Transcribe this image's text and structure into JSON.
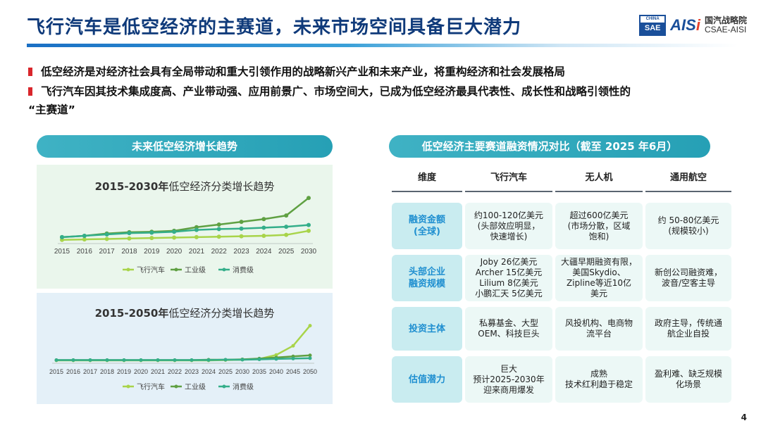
{
  "title": "飞行汽车是低空经济的主赛道，未来市场空间具备巨大潜力",
  "logo": {
    "box_top": "CHINA",
    "box_bottom": "SAE",
    "aisi_main": "AIS",
    "aisi_accent": "i",
    "name_cn": "国汽战略院",
    "name_en": "CSAE-AISI"
  },
  "bullets": [
    "低空经济是对经济社会具有全局带动和重大引领作用的战略新兴产业和未来产业，将重构经济和社会发展格局",
    "飞行汽车因其技术集成度高、产业带动强、应用前景广、市场空间大，已成为低空经济最具代表性、成长性和战略引领性的",
    "“主赛道”"
  ],
  "left_pill": "未来低空经济增长趋势",
  "right_pill": "低空经济主要赛道融资情况对比（截至 2025 年6月）",
  "chart_data": [
    {
      "type": "line",
      "title": "2015-2030年低空经济分类增长趋势",
      "title_bold": "2015-2030年",
      "title_rest": "低空经济分类增长趋势",
      "x": [
        "2015",
        "2016",
        "2017",
        "2018",
        "2019",
        "2020",
        "2021",
        "2022",
        "2023",
        "2024",
        "2025",
        "2030"
      ],
      "ylim": [
        0,
        100
      ],
      "grid": false,
      "legend_position": "bottom",
      "series": [
        {
          "name": "飞行汽车",
          "color": "#a8d44a",
          "values": [
            2,
            3,
            4,
            5,
            6,
            7,
            8,
            9,
            10,
            11,
            13,
            22
          ]
        },
        {
          "name": "工业级",
          "color": "#5fa042",
          "values": [
            8,
            11,
            16,
            19,
            20,
            22,
            30,
            36,
            42,
            48,
            56,
            95
          ]
        },
        {
          "name": "消费级",
          "color": "#34ae8a",
          "values": [
            8,
            11,
            14,
            17,
            18,
            20,
            24,
            26,
            27,
            29,
            31,
            35
          ]
        }
      ]
    },
    {
      "type": "line",
      "title": "2015-2050年低空经济分类增长趋势",
      "title_bold": "2015-2050年",
      "title_rest": "低空经济分类增长趋势",
      "x": [
        "2015",
        "2016",
        "2017",
        "2018",
        "2019",
        "2020",
        "2021",
        "2022",
        "2023",
        "2024",
        "2025",
        "2030",
        "2035",
        "2040",
        "2045",
        "2050"
      ],
      "ylim": [
        0,
        100
      ],
      "grid": false,
      "legend_position": "bottom",
      "series": [
        {
          "name": "飞行汽车",
          "color": "#a8d44a",
          "values": [
            0,
            0,
            0,
            0,
            0,
            0,
            0,
            0,
            0,
            0,
            1,
            2,
            4,
            15,
            40,
            95
          ]
        },
        {
          "name": "工业级",
          "color": "#5fa042",
          "values": [
            1,
            1,
            1,
            1,
            1,
            1,
            1,
            1,
            1,
            2,
            2,
            3,
            5,
            8,
            11,
            14
          ]
        },
        {
          "name": "消费级",
          "color": "#34ae8a",
          "values": [
            1,
            1,
            1,
            1,
            1,
            1,
            1,
            1,
            1,
            1,
            2,
            2,
            3,
            4,
            5,
            6
          ]
        }
      ]
    }
  ],
  "table": {
    "headers": [
      "维度",
      "飞行汽车",
      "无人机",
      "通用航空"
    ],
    "rows": [
      {
        "label": "融资金额\n(全球)",
        "cells": [
          "约100-120亿美元\n(头部效应明显，\n快速增长)",
          "超过600亿美元\n(市场分散，区域\n饱和)",
          "约 50-80亿美元\n(规模较小)"
        ]
      },
      {
        "label": "头部企业\n融资规模",
        "cells": [
          "Joby 26亿美元\nArcher 15亿美元\nLilium 8亿美元\n小鹏汇天 5亿美元",
          "大疆早期融资有限，\n美国Skydio、\nZipline等近10亿\n美元",
          "新创公司融资难，\n波音/空客主导"
        ]
      },
      {
        "label": "投资主体",
        "cells": [
          "私募基金、大型\nOEM、科技巨头",
          "风投机构、电商物\n流平台",
          "政府主导，传统通\n航企业自投"
        ]
      },
      {
        "label": "估值潜力",
        "cells": [
          "巨大\n预计2025-2030年\n迎来商用爆发",
          "成熟\n技术红利趋于稳定",
          "盈利难、缺乏规模\n化场景"
        ]
      }
    ]
  },
  "page_number": "4"
}
